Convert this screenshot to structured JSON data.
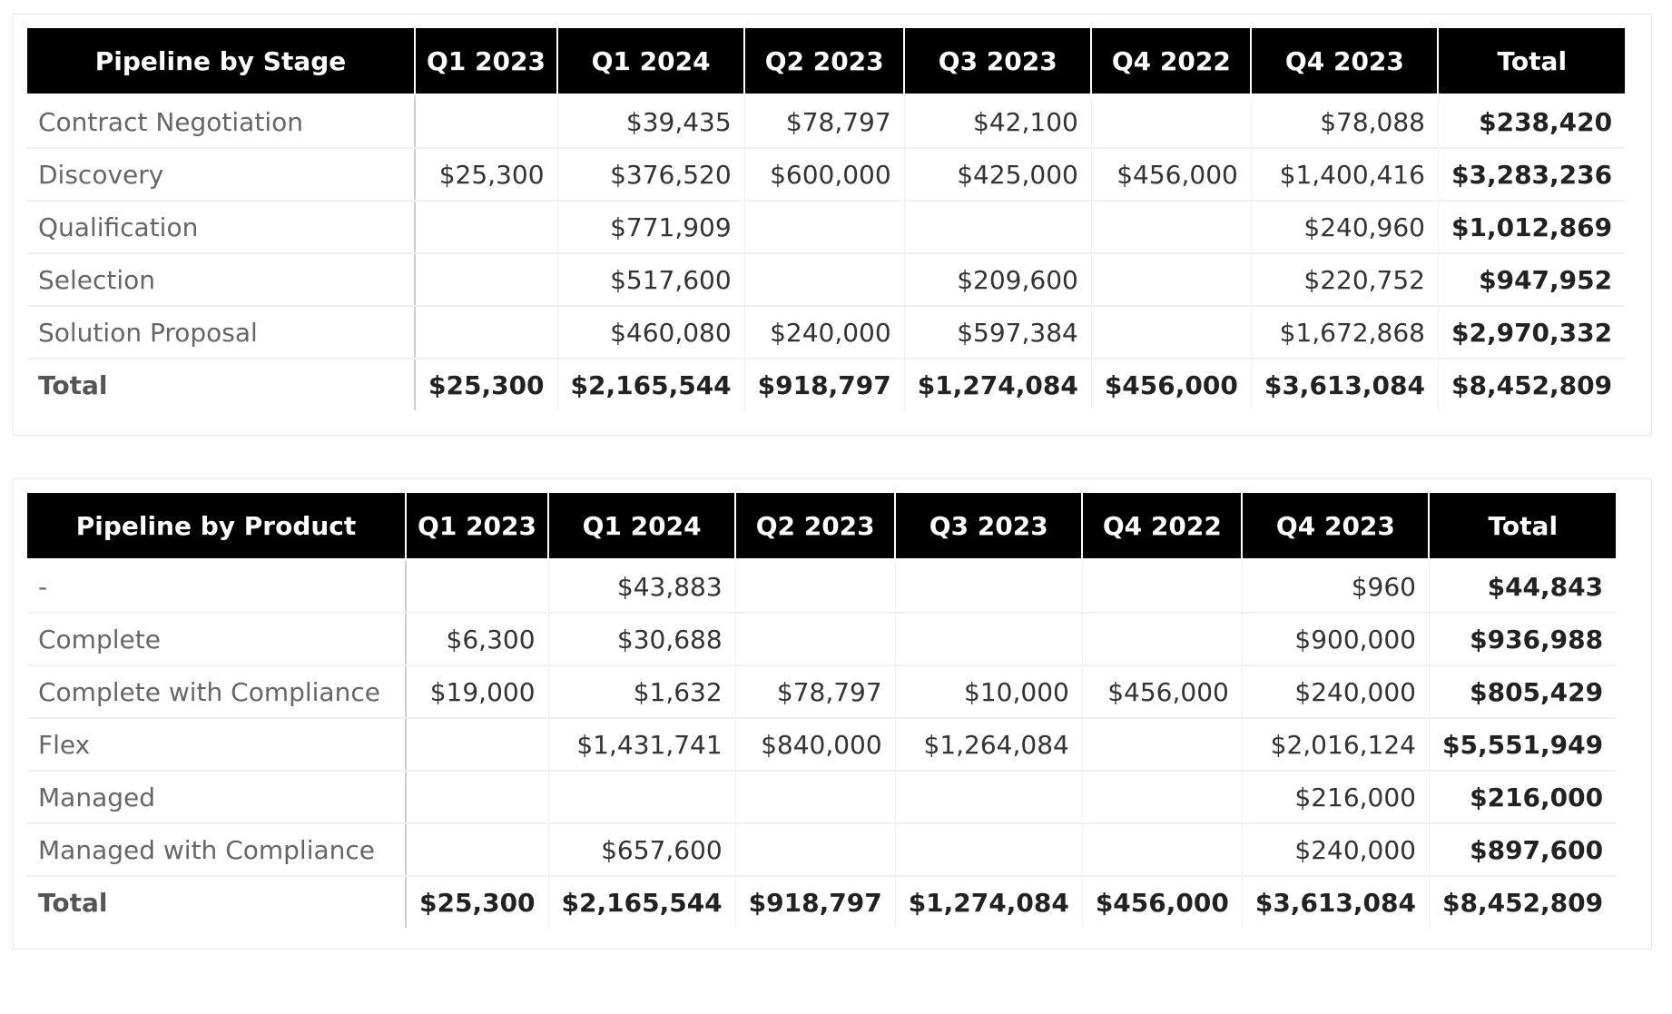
{
  "tables": [
    {
      "title": "Pipeline by Stage",
      "columns": [
        "Q1 2023",
        "Q1 2024",
        "Q2 2023",
        "Q3 2023",
        "Q4 2022",
        "Q4 2023",
        "Total"
      ],
      "rows": [
        {
          "label": "Contract Negotiation",
          "cells": [
            null,
            "$39,435",
            "$78,797",
            "$42,100",
            null,
            "$78,088",
            "$238,420"
          ]
        },
        {
          "label": "Discovery",
          "cells": [
            "$25,300",
            "$376,520",
            "$600,000",
            "$425,000",
            "$456,000",
            "$1,400,416",
            "$3,283,236"
          ]
        },
        {
          "label": "Qualification",
          "cells": [
            null,
            "$771,909",
            null,
            null,
            null,
            "$240,960",
            "$1,012,869"
          ]
        },
        {
          "label": "Selection",
          "cells": [
            null,
            "$517,600",
            null,
            "$209,600",
            null,
            "$220,752",
            "$947,952"
          ]
        },
        {
          "label": "Solution Proposal",
          "cells": [
            null,
            "$460,080",
            "$240,000",
            "$597,384",
            null,
            "$1,672,868",
            "$2,970,332"
          ]
        },
        {
          "label": "Total",
          "cells": [
            "$25,300",
            "$2,165,544",
            "$918,797",
            "$1,274,084",
            "$456,000",
            "$3,613,084",
            "$8,452,809"
          ]
        }
      ]
    },
    {
      "title": "Pipeline by Product",
      "columns": [
        "Q1 2023",
        "Q1 2024",
        "Q2 2023",
        "Q3 2023",
        "Q4 2022",
        "Q4 2023",
        "Total"
      ],
      "rows": [
        {
          "label": "-",
          "cells": [
            null,
            "$43,883",
            null,
            null,
            null,
            "$960",
            "$44,843"
          ]
        },
        {
          "label": "Complete",
          "cells": [
            "$6,300",
            "$30,688",
            null,
            null,
            null,
            "$900,000",
            "$936,988"
          ]
        },
        {
          "label": "Complete with Compliance",
          "cells": [
            "$19,000",
            "$1,632",
            "$78,797",
            "$10,000",
            "$456,000",
            "$240,000",
            "$805,429"
          ]
        },
        {
          "label": "Flex",
          "cells": [
            null,
            "$1,431,741",
            "$840,000",
            "$1,264,084",
            null,
            "$2,016,124",
            "$5,551,949"
          ]
        },
        {
          "label": "Managed",
          "cells": [
            null,
            null,
            null,
            null,
            null,
            "$216,000",
            "$216,000"
          ]
        },
        {
          "label": "Managed with Compliance",
          "cells": [
            null,
            "$657,600",
            null,
            null,
            null,
            "$240,000",
            "$897,600"
          ]
        },
        {
          "label": "Total",
          "cells": [
            "$25,300",
            "$2,165,544",
            "$918,797",
            "$1,274,084",
            "$456,000",
            "$3,613,084",
            "$8,452,809"
          ]
        }
      ]
    }
  ]
}
